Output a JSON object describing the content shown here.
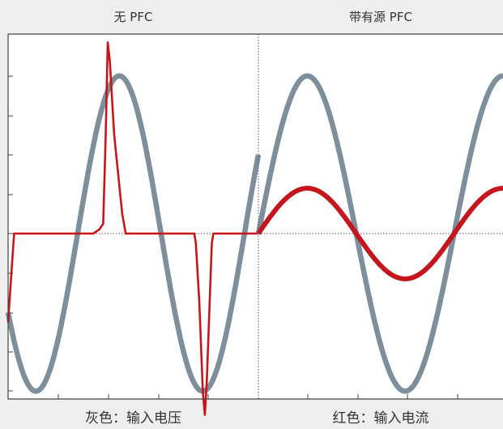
{
  "labels": {
    "left_title": "无 PFC",
    "right_title": "带有源 PFC",
    "left_caption": "灰色：输入电压",
    "right_caption": "红色：输入电流"
  },
  "colors": {
    "background": "#eeeeef",
    "plot_background": "#ffffff",
    "frame": "#444444",
    "voltage": "#7d8f9b",
    "current": "#c4161c",
    "reference_line": "#555555"
  },
  "chart_data": [
    {
      "type": "line",
      "title": "无 PFC",
      "xlabel": "",
      "ylabel": "",
      "x_divisions": 5,
      "y_divisions": 10,
      "ylim": [
        -1.05,
        1.0
      ],
      "grid": false,
      "zero_line": "dotted",
      "series": [
        {
          "name": "输入电压",
          "color": "#7d8f9b",
          "shape": "sine",
          "amplitude": 0.8,
          "cycles": 1.5,
          "start_phase_deg": 210,
          "x_from": 0.0,
          "x_to": 5.0
        },
        {
          "name": "输入电流",
          "color": "#c4161c",
          "shape": "rectifier-pulses",
          "points": [
            [
              0.0,
              -0.45
            ],
            [
              0.12,
              0.0
            ],
            [
              0.2,
              0.0
            ],
            [
              1.7,
              0.0
            ],
            [
              1.82,
              0.02
            ],
            [
              1.9,
              0.05
            ],
            [
              1.95,
              0.5
            ],
            [
              1.99,
              0.97
            ],
            [
              2.03,
              0.88
            ],
            [
              2.12,
              0.5
            ],
            [
              2.28,
              0.1
            ],
            [
              2.35,
              0.0
            ],
            [
              3.72,
              0.0
            ],
            [
              3.75,
              -0.05
            ],
            [
              3.82,
              -0.35
            ],
            [
              3.89,
              -0.8
            ],
            [
              3.93,
              -0.92
            ],
            [
              3.97,
              -0.75
            ],
            [
              4.02,
              -0.4
            ],
            [
              4.07,
              -0.05
            ],
            [
              4.1,
              0.0
            ],
            [
              5.0,
              0.0
            ]
          ]
        }
      ]
    },
    {
      "type": "line",
      "title": "带有源 PFC",
      "xlabel": "",
      "ylabel": "",
      "x_divisions": 5,
      "y_divisions": 10,
      "ylim": [
        -1.05,
        1.0
      ],
      "grid": false,
      "zero_line": "dotted",
      "series": [
        {
          "name": "输入电压",
          "color": "#7d8f9b",
          "shape": "sine",
          "amplitude": 0.8,
          "cycles": 1.25,
          "start_phase_deg": 0,
          "x_from": 0.0,
          "x_to": 5.0
        },
        {
          "name": "输入电流",
          "color": "#c4161c",
          "shape": "sine",
          "amplitude": 0.23,
          "cycles": 1.25,
          "start_phase_deg": 0,
          "x_from": 0.0,
          "x_to": 5.0
        }
      ]
    }
  ]
}
